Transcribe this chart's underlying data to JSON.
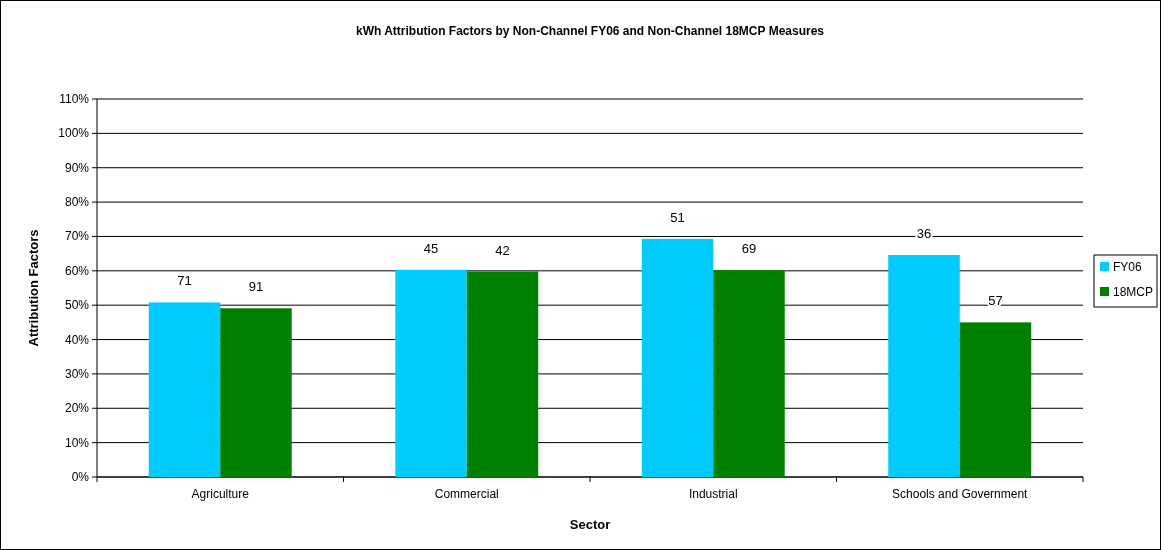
{
  "chart_data": {
    "type": "bar",
    "title": "kWh Attribution Factors by Non-Channel FY06  and Non-Channel 18MCP Measures",
    "xlabel": "Sector",
    "ylabel": "Attribution Factors",
    "categories": [
      "Agriculture",
      "Commercial",
      "Industrial",
      "Schools and Government"
    ],
    "series": [
      {
        "name": "FY06",
        "color": "#00ccff",
        "values": [
          50.8,
          60.3,
          69.3,
          64.6
        ]
      },
      {
        "name": "18MCP",
        "color": "#008000",
        "values": [
          49.1,
          59.8,
          60.2,
          45.0
        ]
      }
    ],
    "annotations": [
      {
        "text": "71",
        "x": "Agriculture",
        "y": 50.8
      },
      {
        "text": "91",
        "x": "Agriculture",
        "y": 49.1
      },
      {
        "text": "45",
        "x": "Commercial",
        "y": 60.3
      },
      {
        "text": "42",
        "x": "Commercial",
        "y": 59.8
      },
      {
        "text": "51",
        "x": "Industrial",
        "y": 69.3
      },
      {
        "text": "69",
        "x": "Industrial",
        "y": 60.2
      },
      {
        "text": "36",
        "x": "Schools and Government",
        "y": 64.6
      },
      {
        "text": "57",
        "x": "Schools and Government",
        "y": 45.0
      }
    ],
    "ylim": [
      0,
      110
    ],
    "yticks": [
      {
        "value": 0,
        "label": "0%"
      },
      {
        "value": 10,
        "label": "10%"
      },
      {
        "value": 20,
        "label": "20%"
      },
      {
        "value": 30,
        "label": "30%"
      },
      {
        "value": 40,
        "label": "40%"
      },
      {
        "value": 50,
        "label": "50%"
      },
      {
        "value": 60,
        "label": "60%"
      },
      {
        "value": 70,
        "label": "70%"
      },
      {
        "value": 80,
        "label": "80%"
      },
      {
        "value": 90,
        "label": "90%"
      },
      {
        "value": 100,
        "label": "100%"
      },
      {
        "value": 110,
        "label": "110%"
      }
    ],
    "grid": "y",
    "legend": "right"
  }
}
